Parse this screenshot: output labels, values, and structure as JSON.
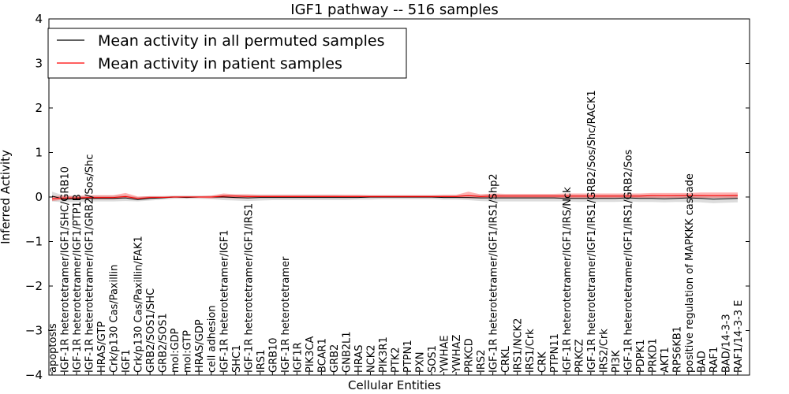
{
  "chart_data": {
    "type": "line",
    "title": "IGF1 pathway -- 516 samples",
    "xlabel": "Cellular Entities",
    "ylabel": "Inferred Activity",
    "ylim": [
      -4,
      4
    ],
    "yticks": [
      "−4",
      "−3",
      "−2",
      "−1",
      "0",
      "1",
      "2",
      "3",
      "4"
    ],
    "grid": false,
    "legend_position": "top-left",
    "categories": [
      "apoptosis",
      "IGF-1R heterotetramer/IGF1/SHC/GRB10",
      "IGF-1R heterotetramer/IGF1/PTP1B",
      "IGF-1R heterotetramer/IGF1/GRB2/Sos/Shc",
      "HRAS/GTP",
      "Crk/p130 Cas/Paxillin",
      "IGF1",
      "Crk/p130 Cas/Paxillin/FAK1",
      "GRB2/SOS1/SHC",
      "GRB2/SOS1",
      "mol:GDP",
      "mol:GTP",
      "HRAS/GDP",
      "cell adhesion",
      "IGF-1R heterotetramer/IGF1",
      "SHC1",
      "IGF-1R heterotetramer/IGF1/IRS1",
      "IRS1",
      "GRB10",
      "IGF-1R heterotetramer",
      "IGF1R",
      "PIK3CA",
      "BCAR1",
      "GRB2",
      "GNB2L1",
      "HRAS",
      "NCK2",
      "PIK3R1",
      "PTK2",
      "PTPN1",
      "PXN",
      "SOS1",
      "YWHAE",
      "YWHAZ",
      "PRKCD",
      "IRS2",
      "IGF-1R heterotetramer/IGF1/IRS1/Shp2",
      "CRKL",
      "IRS1/NCK2",
      "IRS1/Crk",
      "CRK",
      "PTPN11",
      "IGF-1R heterotetramer/IGF1/IRS/Nck",
      "PRKCZ",
      "IGF-1R heterotetramer/IGF1/IRS1/GRB2/Sos/Shc/RACK1",
      "IRS2/Crk",
      "PI3K",
      "IGF-1R heterotetramer/IGF1/IRS1/GRB2/Sos",
      "PDPK1",
      "PRKD1",
      "AKT1",
      "RPS6KB1",
      "positive regulation of MAPKKK cascade",
      "BAD",
      "RAF1",
      "BAD/14-3-3",
      "RAF1/14-3-3 E"
    ],
    "series": [
      {
        "name": "Mean activity in all permuted samples",
        "color": "#000000",
        "values": [
          0.02,
          -0.05,
          -0.04,
          -0.03,
          -0.03,
          -0.03,
          -0.02,
          -0.06,
          -0.03,
          -0.02,
          0.0,
          -0.01,
          0.0,
          0.0,
          0.0,
          -0.01,
          -0.02,
          -0.01,
          -0.01,
          -0.01,
          -0.01,
          -0.01,
          -0.01,
          -0.01,
          -0.01,
          -0.01,
          0.0,
          0.0,
          0.0,
          0.0,
          0.0,
          0.0,
          -0.01,
          -0.01,
          -0.01,
          -0.02,
          -0.02,
          -0.02,
          -0.02,
          -0.02,
          -0.02,
          -0.02,
          -0.03,
          -0.03,
          -0.03,
          -0.03,
          -0.03,
          -0.02,
          -0.03,
          -0.03,
          -0.04,
          -0.03,
          -0.02,
          -0.03,
          -0.05,
          -0.04,
          -0.03
        ],
        "band_low": [
          -0.1,
          -0.12,
          -0.11,
          -0.1,
          -0.1,
          -0.1,
          -0.09,
          -0.1,
          -0.08,
          -0.06,
          -0.04,
          -0.04,
          -0.04,
          -0.05,
          -0.07,
          -0.08,
          -0.09,
          -0.08,
          -0.07,
          -0.07,
          -0.07,
          -0.07,
          -0.07,
          -0.07,
          -0.07,
          -0.06,
          -0.06,
          -0.05,
          -0.05,
          -0.05,
          -0.05,
          -0.05,
          -0.06,
          -0.06,
          -0.07,
          -0.09,
          -0.1,
          -0.1,
          -0.1,
          -0.1,
          -0.1,
          -0.1,
          -0.1,
          -0.11,
          -0.11,
          -0.11,
          -0.11,
          -0.1,
          -0.11,
          -0.11,
          -0.12,
          -0.11,
          -0.11,
          -0.12,
          -0.14,
          -0.13,
          -0.12
        ],
        "band_high": [
          0.12,
          0.03,
          0.02,
          0.03,
          0.03,
          0.03,
          0.04,
          0.0,
          0.02,
          0.02,
          0.03,
          0.03,
          0.03,
          0.03,
          0.05,
          0.05,
          0.05,
          0.05,
          0.05,
          0.05,
          0.05,
          0.05,
          0.05,
          0.05,
          0.04,
          0.04,
          0.04,
          0.04,
          0.04,
          0.04,
          0.04,
          0.04,
          0.04,
          0.04,
          0.05,
          0.05,
          0.06,
          0.05,
          0.05,
          0.05,
          0.05,
          0.05,
          0.05,
          0.05,
          0.05,
          0.05,
          0.05,
          0.05,
          0.05,
          0.05,
          0.04,
          0.05,
          0.06,
          0.05,
          0.04,
          0.05,
          0.06
        ]
      },
      {
        "name": "Mean activity in patient samples",
        "color": "#ff0000",
        "values": [
          -0.04,
          -0.02,
          -0.02,
          -0.01,
          -0.01,
          -0.01,
          0.01,
          -0.03,
          -0.01,
          -0.01,
          0.0,
          0.0,
          0.0,
          0.0,
          0.02,
          0.02,
          0.01,
          0.01,
          0.01,
          0.01,
          0.01,
          0.01,
          0.01,
          0.01,
          0.01,
          0.01,
          0.01,
          0.01,
          0.01,
          0.01,
          0.01,
          0.01,
          0.01,
          0.01,
          0.03,
          0.01,
          0.02,
          0.02,
          0.02,
          0.02,
          0.02,
          0.02,
          0.02,
          0.02,
          0.02,
          0.02,
          0.02,
          0.02,
          0.02,
          0.03,
          0.03,
          0.03,
          0.03,
          0.03,
          0.03,
          0.03,
          0.03
        ],
        "band_low": [
          -0.09,
          -0.06,
          -0.05,
          -0.05,
          -0.05,
          -0.05,
          -0.03,
          -0.05,
          -0.03,
          -0.02,
          -0.02,
          -0.02,
          -0.02,
          -0.03,
          -0.02,
          -0.03,
          -0.03,
          -0.02,
          -0.02,
          -0.02,
          -0.02,
          -0.02,
          -0.02,
          -0.02,
          -0.02,
          -0.02,
          -0.02,
          -0.02,
          -0.02,
          -0.02,
          -0.02,
          -0.02,
          -0.02,
          -0.02,
          -0.03,
          -0.03,
          -0.03,
          -0.03,
          -0.03,
          -0.03,
          -0.03,
          -0.03,
          -0.03,
          -0.03,
          -0.03,
          -0.03,
          -0.02,
          -0.02,
          -0.02,
          -0.02,
          -0.02,
          -0.02,
          -0.02,
          -0.02,
          -0.02,
          -0.02,
          -0.02
        ],
        "band_high": [
          0.02,
          0.03,
          0.02,
          0.04,
          0.04,
          0.04,
          0.09,
          0.01,
          0.02,
          0.02,
          0.02,
          0.02,
          0.02,
          0.03,
          0.08,
          0.06,
          0.06,
          0.05,
          0.05,
          0.05,
          0.05,
          0.05,
          0.05,
          0.05,
          0.05,
          0.05,
          0.04,
          0.04,
          0.04,
          0.04,
          0.04,
          0.04,
          0.05,
          0.05,
          0.12,
          0.06,
          0.08,
          0.07,
          0.07,
          0.07,
          0.07,
          0.07,
          0.08,
          0.08,
          0.08,
          0.08,
          0.08,
          0.08,
          0.08,
          0.09,
          0.09,
          0.09,
          0.09,
          0.1,
          0.1,
          0.1,
          0.1
        ]
      }
    ]
  }
}
